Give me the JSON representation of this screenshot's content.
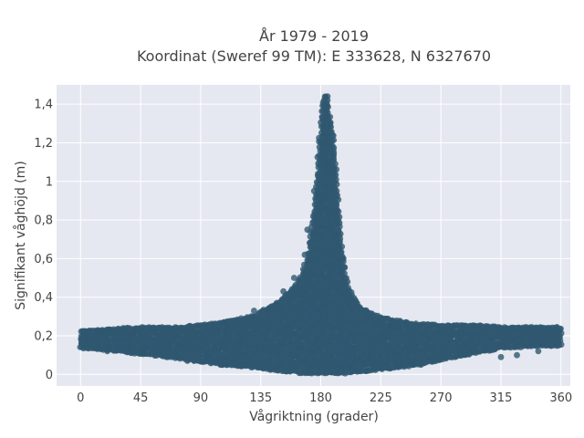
{
  "chart_data": {
    "type": "scatter",
    "title": "År 1979 - 2019",
    "subtitle": "Koordinat (Sweref 99 TM): E 333628, N 6327670",
    "xlabel": "Vågriktning (grader)",
    "ylabel": "Signifikant våghöjd (m)",
    "xlim": [
      -18,
      367
    ],
    "ylim": [
      -0.06,
      1.5
    ],
    "x_ticks": [
      0,
      45,
      90,
      135,
      180,
      225,
      270,
      315,
      360
    ],
    "x_tick_labels": [
      "0",
      "45",
      "90",
      "135",
      "180",
      "225",
      "270",
      "315",
      "360"
    ],
    "y_ticks": [
      0,
      0.2,
      0.4,
      0.6,
      0.8,
      1,
      1.2,
      1.4
    ],
    "y_tick_labels": [
      "0",
      "0,2",
      "0,4",
      "0,6",
      "0,8",
      "1",
      "1,2",
      "1,4"
    ],
    "grid": true,
    "colors": {
      "marker": "#2f5870",
      "plot_bg": "#e5e8f0",
      "grid": "#ffffff"
    },
    "envelope": {
      "direction": [
        0,
        20,
        45,
        70,
        90,
        110,
        130,
        150,
        160,
        165,
        170,
        175,
        178,
        180,
        182,
        185,
        190,
        195,
        200,
        210,
        225,
        250,
        270,
        300,
        315,
        340,
        360
      ],
      "upper": [
        0.22,
        0.23,
        0.24,
        0.24,
        0.25,
        0.27,
        0.3,
        0.38,
        0.45,
        0.5,
        0.6,
        0.85,
        1.1,
        1.3,
        1.45,
        1.42,
        1.2,
        0.7,
        0.45,
        0.34,
        0.29,
        0.26,
        0.25,
        0.25,
        0.24,
        0.24,
        0.24
      ],
      "lower": [
        0.14,
        0.13,
        0.11,
        0.09,
        0.07,
        0.05,
        0.04,
        0.02,
        0.02,
        0.01,
        0.01,
        0.01,
        0.01,
        0.01,
        0.01,
        0.01,
        0.01,
        0.01,
        0.01,
        0.02,
        0.03,
        0.05,
        0.08,
        0.12,
        0.14,
        0.15,
        0.15
      ]
    },
    "scatter_points": [
      {
        "x": 20,
        "y": 0.12
      },
      {
        "x": 32,
        "y": 0.24
      },
      {
        "x": 63,
        "y": 0.24
      },
      {
        "x": 80,
        "y": 0.07
      },
      {
        "x": 105,
        "y": 0.05
      },
      {
        "x": 130,
        "y": 0.33
      },
      {
        "x": 146,
        "y": 0.36
      },
      {
        "x": 152,
        "y": 0.43
      },
      {
        "x": 157,
        "y": 0.42
      },
      {
        "x": 160,
        "y": 0.5
      },
      {
        "x": 168,
        "y": 0.62
      },
      {
        "x": 170,
        "y": 0.75
      },
      {
        "x": 175,
        "y": 0.95
      },
      {
        "x": 180,
        "y": 1.2
      },
      {
        "x": 183,
        "y": 1.38
      },
      {
        "x": 185,
        "y": 1.44
      },
      {
        "x": 187,
        "y": 1.3
      },
      {
        "x": 190,
        "y": 1.05
      },
      {
        "x": 193,
        "y": 0.8
      },
      {
        "x": 197,
        "y": 0.6
      },
      {
        "x": 200,
        "y": 0.48
      },
      {
        "x": 213,
        "y": 0.33
      },
      {
        "x": 240,
        "y": 0.06
      },
      {
        "x": 255,
        "y": 0.05
      },
      {
        "x": 265,
        "y": 0.07
      },
      {
        "x": 315,
        "y": 0.09
      },
      {
        "x": 327,
        "y": 0.1
      },
      {
        "x": 343,
        "y": 0.12
      },
      {
        "x": 352,
        "y": 0.15
      },
      {
        "x": 150,
        "y": 0.3
      },
      {
        "x": 140,
        "y": 0.3
      },
      {
        "x": 125,
        "y": 0.28
      },
      {
        "x": 170,
        "y": 0.4
      }
    ]
  }
}
